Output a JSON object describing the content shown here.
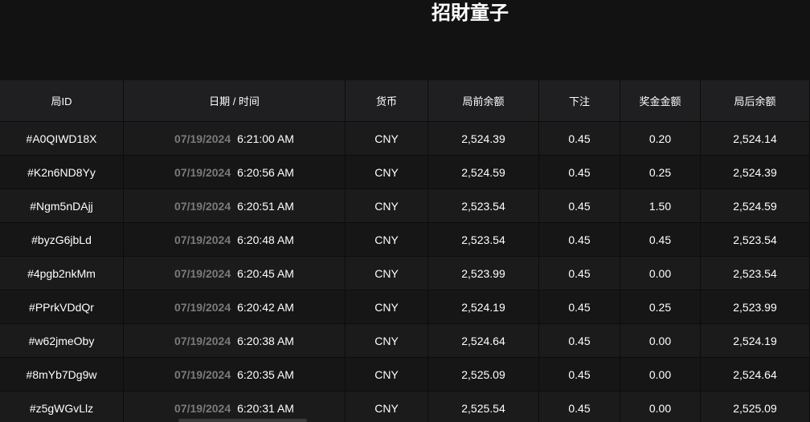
{
  "header": {
    "title": "招財童子"
  },
  "table": {
    "columns": [
      "局ID",
      "日期 / 时间",
      "货币",
      "局前余额",
      "下注",
      "奖金金额",
      "局后余额"
    ],
    "rows": [
      [
        "#A0QIWD18X",
        "07/19/2024",
        "6:21:00 AM",
        "CNY",
        "2,524.39",
        "0.45",
        "0.20",
        "2,524.14"
      ],
      [
        "#K2n6ND8Yy",
        "07/19/2024",
        "6:20:56 AM",
        "CNY",
        "2,524.59",
        "0.45",
        "0.25",
        "2,524.39"
      ],
      [
        "#Ngm5nDAjj",
        "07/19/2024",
        "6:20:51 AM",
        "CNY",
        "2,523.54",
        "0.45",
        "1.50",
        "2,524.59"
      ],
      [
        "#byzG6jbLd",
        "07/19/2024",
        "6:20:48 AM",
        "CNY",
        "2,523.54",
        "0.45",
        "0.45",
        "2,523.54"
      ],
      [
        "#4pgb2nkMm",
        "07/19/2024",
        "6:20:45 AM",
        "CNY",
        "2,523.99",
        "0.45",
        "0.00",
        "2,523.54"
      ],
      [
        "#PPrkVDdQr",
        "07/19/2024",
        "6:20:42 AM",
        "CNY",
        "2,524.19",
        "0.45",
        "0.25",
        "2,523.99"
      ],
      [
        "#w62jmeOby",
        "07/19/2024",
        "6:20:38 AM",
        "CNY",
        "2,524.64",
        "0.45",
        "0.00",
        "2,524.19"
      ],
      [
        "#8mYb7Dg9w",
        "07/19/2024",
        "6:20:35 AM",
        "CNY",
        "2,525.09",
        "0.45",
        "0.00",
        "2,524.64"
      ],
      [
        "#z5gWGvLlz",
        "07/19/2024",
        "6:20:31 AM",
        "CNY",
        "2,525.54",
        "0.45",
        "0.00",
        "2,525.09"
      ]
    ]
  }
}
